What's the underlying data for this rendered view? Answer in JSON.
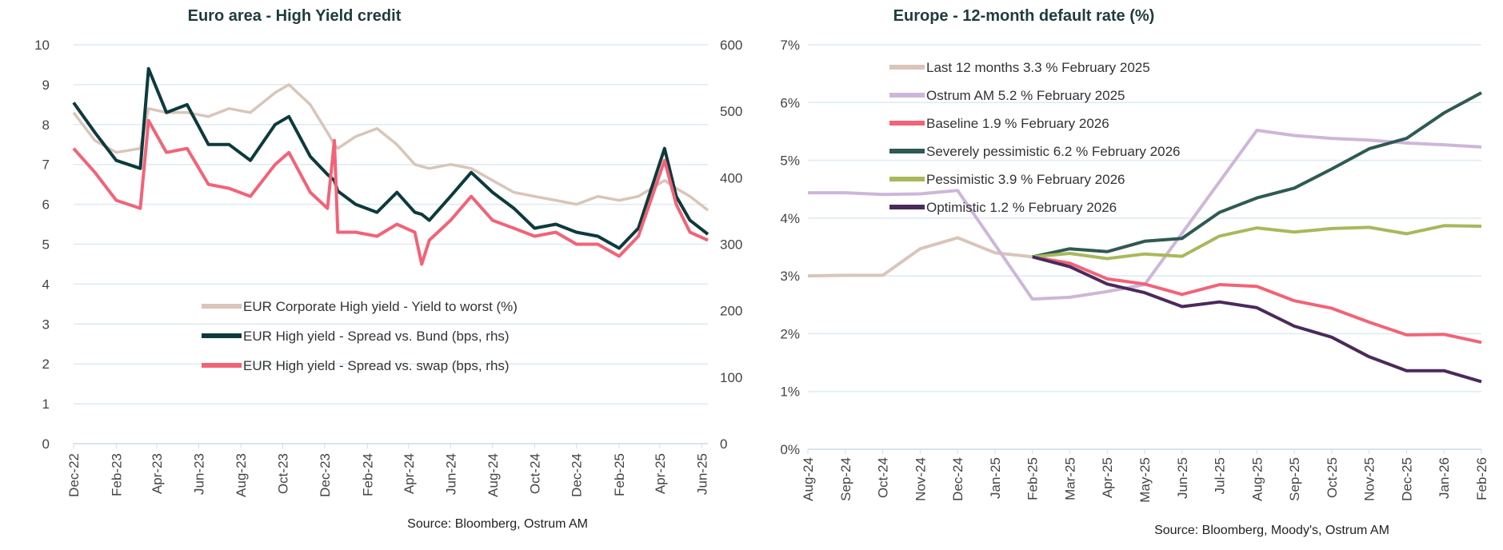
{
  "chart_data": [
    {
      "type": "line",
      "title": "Euro area - High Yield credit",
      "source": "Source: Bloomberg, Ostrum AM",
      "x_tick_labels": [
        "Dec-22",
        "Feb-23",
        "Apr-23",
        "Jun-23",
        "Aug-23",
        "Oct-23",
        "Dec-23",
        "Feb-24",
        "Apr-24",
        "Jun-24",
        "Aug-24",
        "Oct-24",
        "Dec-24",
        "Feb-25",
        "Apr-25",
        "Jun-25"
      ],
      "x_range": [
        "2022-12-01",
        "2025-06-10"
      ],
      "y_left": {
        "range": [
          0,
          10
        ],
        "ticks": [
          "0",
          "1",
          "2",
          "3",
          "4",
          "5",
          "6",
          "7",
          "8",
          "9",
          "10"
        ]
      },
      "y_right": {
        "range": [
          0,
          600
        ],
        "ticks": [
          "0",
          "100",
          "200",
          "300",
          "400",
          "500",
          "600"
        ]
      },
      "grid": true,
      "legend_placement": "center",
      "x": [
        "2022-12-01",
        "2023-01-01",
        "2023-02-01",
        "2023-03-08",
        "2023-03-20",
        "2023-04-15",
        "2023-05-15",
        "2023-06-15",
        "2023-07-15",
        "2023-08-15",
        "2023-09-20",
        "2023-10-10",
        "2023-11-10",
        "2023-12-05",
        "2023-12-15",
        "2023-12-20",
        "2024-01-15",
        "2024-02-15",
        "2024-03-15",
        "2024-04-10",
        "2024-04-20",
        "2024-05-01",
        "2024-06-01",
        "2024-07-01",
        "2024-08-01",
        "2024-09-01",
        "2024-10-01",
        "2024-11-01",
        "2024-12-01",
        "2025-01-01",
        "2025-02-01",
        "2025-03-01",
        "2025-04-08",
        "2025-04-25",
        "2025-05-15",
        "2025-06-10"
      ],
      "series": [
        {
          "name": "EUR Corporate High yield - Yield to worst  (%)",
          "axis": "left",
          "color": "#d9c5b9",
          "values": [
            8.3,
            7.6,
            7.3,
            7.4,
            8.4,
            8.3,
            8.3,
            8.2,
            8.4,
            8.3,
            8.8,
            9.0,
            8.5,
            7.8,
            7.5,
            7.4,
            7.7,
            7.9,
            7.5,
            7.0,
            6.95,
            6.9,
            7.0,
            6.9,
            6.6,
            6.3,
            6.2,
            6.1,
            6.0,
            6.2,
            6.1,
            6.2,
            6.6,
            6.4,
            6.2,
            5.85
          ]
        },
        {
          "name": "EUR High yield - Spread vs. Bund  (bps, rhs)",
          "axis": "right",
          "color": "#0d3a3d",
          "values": [
            513,
            468,
            426,
            414,
            564,
            498,
            510,
            450,
            450,
            426,
            480,
            492,
            432,
            405,
            396,
            380,
            360,
            348,
            378,
            348,
            345,
            336,
            372,
            408,
            378,
            354,
            324,
            330,
            318,
            312,
            294,
            324,
            444,
            372,
            336,
            315
          ]
        },
        {
          "name": "EUR High yield - Spread vs. swap  (bps, rhs)",
          "axis": "right",
          "color": "#f26377",
          "values": [
            444,
            408,
            366,
            354,
            486,
            438,
            444,
            390,
            384,
            372,
            420,
            438,
            378,
            354,
            456,
            318,
            318,
            312,
            330,
            318,
            270,
            306,
            336,
            372,
            336,
            324,
            312,
            318,
            300,
            300,
            282,
            312,
            426,
            360,
            318,
            306
          ]
        }
      ]
    },
    {
      "type": "line",
      "title": "Europe - 12-month default rate (%)",
      "source": "Source: Bloomberg, Moody's, Ostrum AM",
      "categories": [
        "Aug-24",
        "Sep-24",
        "Oct-24",
        "Nov-24",
        "Dec-24",
        "Jan-25",
        "Feb-25",
        "Mar-25",
        "Apr-25",
        "May-25",
        "Jun-25",
        "Jul-25",
        "Aug-25",
        "Sep-25",
        "Oct-25",
        "Nov-25",
        "Dec-25",
        "Jan-26",
        "Feb-26"
      ],
      "y_range": [
        0,
        7
      ],
      "y_ticks": [
        "0%",
        "1%",
        "2%",
        "3%",
        "4%",
        "5%",
        "6%",
        "7%"
      ],
      "grid": true,
      "legend_placement": "top-left",
      "series": [
        {
          "name": "Last 12 months 3.3 % February 2025",
          "color": "#d9c5b9",
          "values": [
            3.0,
            3.01,
            3.01,
            3.47,
            3.66,
            3.4,
            3.33,
            null,
            null,
            null,
            null,
            null,
            null,
            null,
            null,
            null,
            null,
            null,
            null
          ]
        },
        {
          "name": "Ostrum AM 5.2 % February  2025",
          "color": "#ceb6d9",
          "values": [
            4.44,
            4.44,
            4.41,
            4.42,
            4.48,
            3.54,
            2.6,
            2.63,
            2.73,
            2.85,
            3.74,
            4.63,
            5.52,
            5.43,
            5.38,
            5.35,
            5.3,
            5.27,
            5.23
          ]
        },
        {
          "name": "Baseline 1.9 % February  2026",
          "color": "#f26377",
          "values": [
            null,
            null,
            null,
            null,
            null,
            null,
            3.33,
            3.22,
            2.95,
            2.86,
            2.68,
            2.85,
            2.82,
            2.57,
            2.44,
            2.2,
            1.98,
            1.99,
            1.85
          ]
        },
        {
          "name": "Severely pessimistic 6.2 %  February  2026",
          "color": "#2e5a52",
          "values": [
            null,
            null,
            null,
            null,
            null,
            null,
            3.33,
            3.47,
            3.42,
            3.6,
            3.65,
            4.1,
            4.35,
            4.52,
            4.85,
            5.2,
            5.38,
            5.82,
            6.17
          ]
        },
        {
          "name": "Pessimistic 3.9 %  February  2026",
          "color": "#a9b85b",
          "values": [
            null,
            null,
            null,
            null,
            null,
            null,
            3.33,
            3.39,
            3.3,
            3.38,
            3.34,
            3.69,
            3.83,
            3.76,
            3.82,
            3.84,
            3.73,
            3.87,
            3.86
          ]
        },
        {
          "name": "Optimistic 1.2 %  February  2026",
          "color": "#4b2a5b",
          "values": [
            null,
            null,
            null,
            null,
            null,
            null,
            3.33,
            3.16,
            2.86,
            2.71,
            2.47,
            2.55,
            2.45,
            2.13,
            1.94,
            1.6,
            1.36,
            1.36,
            1.17
          ]
        }
      ]
    }
  ]
}
